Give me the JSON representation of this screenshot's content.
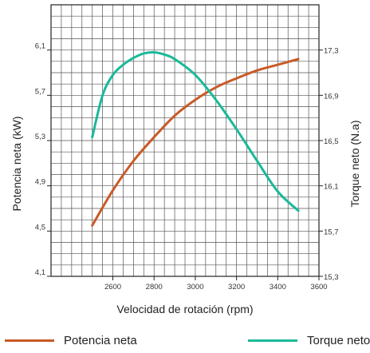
{
  "chart_data": {
    "type": "line",
    "xlabel": "Velocidad de rotación (rpm)",
    "ylabel_left": "Potencia neta (kW)",
    "ylabel_right": "Torque neto (N.a)",
    "xlim": [
      2300,
      3600
    ],
    "ylim_left": [
      4.1,
      6.5
    ],
    "ylim_right": [
      15.3,
      17.7
    ],
    "x_ticks": [
      "2600",
      "2800",
      "3000",
      "3200",
      "3400",
      "3600"
    ],
    "y_left_ticks": [
      "4,1",
      "4,5",
      "4,9",
      "5,3",
      "5,7",
      "6,1"
    ],
    "y_right_ticks": [
      "15,3",
      "15,7",
      "16,1",
      "16,5",
      "16,9",
      "17,3"
    ],
    "grid": true,
    "legend_position": "bottom",
    "series": [
      {
        "name": "Potencia neta",
        "axis": "left",
        "color": "#c85a27",
        "x": [
          2500,
          2600,
          2700,
          2800,
          2900,
          3000,
          3100,
          3200,
          3300,
          3400,
          3500
        ],
        "y": [
          4.55,
          4.86,
          5.12,
          5.33,
          5.52,
          5.66,
          5.77,
          5.85,
          5.92,
          5.97,
          6.02
        ]
      },
      {
        "name": "Torque neto",
        "axis": "right",
        "color": "#1ab99a",
        "x": [
          2500,
          2550,
          2600,
          2650,
          2700,
          2750,
          2800,
          2850,
          2900,
          3000,
          3100,
          3200,
          3300,
          3400,
          3500
        ],
        "y": [
          16.53,
          16.9,
          17.08,
          17.17,
          17.23,
          17.27,
          17.28,
          17.26,
          17.22,
          17.08,
          16.86,
          16.6,
          16.32,
          16.05,
          15.88
        ]
      }
    ]
  },
  "colors": {
    "grid": "#555555",
    "axis": "#222222",
    "background": "#ffffff"
  }
}
